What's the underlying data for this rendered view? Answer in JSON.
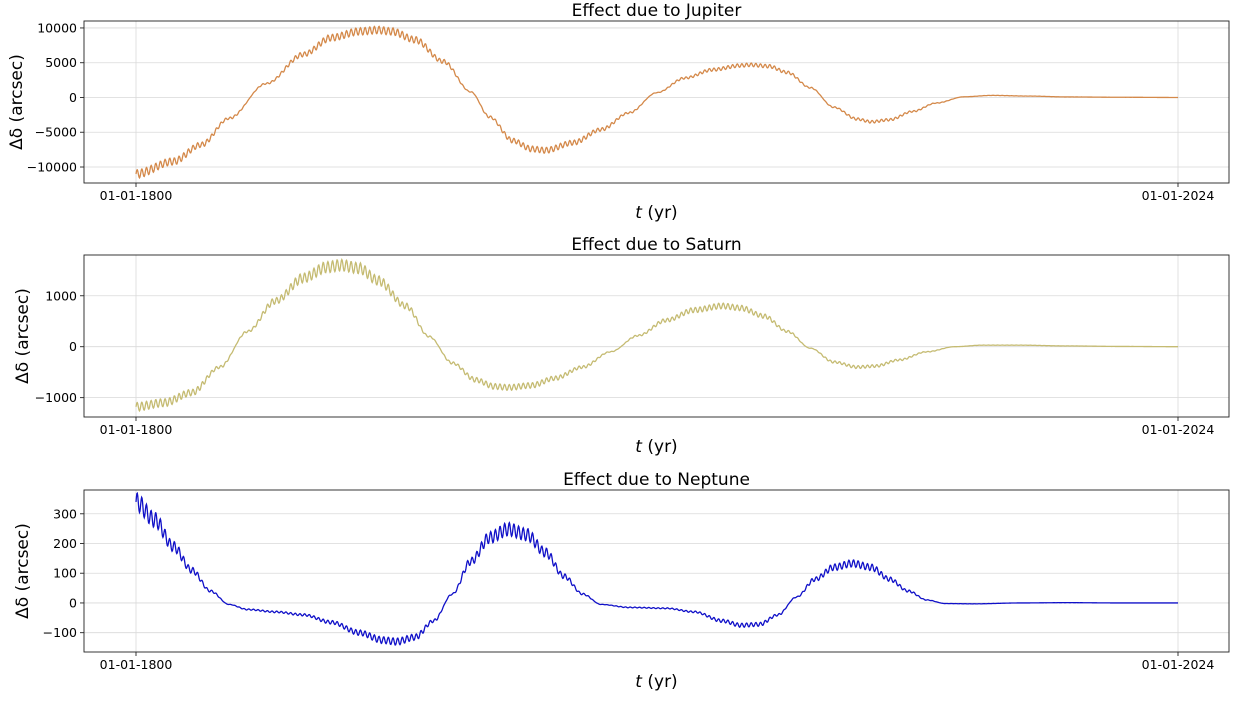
{
  "chart_data": [
    {
      "type": "line",
      "title": "Effect due to Jupiter",
      "xlabel_italic": "t",
      "xlabel_unit": " (yr)",
      "ylabel_symbol": "Δδ",
      "ylabel_unit": " (arcsec)",
      "x_ticklabels": [
        "01-01-1800",
        "01-01-2024"
      ],
      "xlim": [
        1800,
        2024
      ],
      "ylim": [
        -12300,
        11000
      ],
      "yticks": [
        -10000,
        -5000,
        0,
        5000,
        10000
      ],
      "grid": true,
      "series": [
        {
          "color": "#d4894a",
          "oscillation": {
            "period_yr": 1.0,
            "rel_amplitude": 0.055
          },
          "envelope": [
            [
              1800,
              -11000
            ],
            [
              1808,
              -9200
            ],
            [
              1814,
              -6800
            ],
            [
              1820,
              -3000
            ],
            [
              1828,
              2000
            ],
            [
              1836,
              6200
            ],
            [
              1842,
              8600
            ],
            [
              1848,
              9500
            ],
            [
              1852,
              9700
            ],
            [
              1855,
              9500
            ],
            [
              1860,
              8300
            ],
            [
              1866,
              5200
            ],
            [
              1872,
              800
            ],
            [
              1876,
              -2800
            ],
            [
              1881,
              -6200
            ],
            [
              1885,
              -7400
            ],
            [
              1888,
              -7600
            ],
            [
              1894,
              -6500
            ],
            [
              1900,
              -4600
            ],
            [
              1906,
              -2200
            ],
            [
              1912,
              700
            ],
            [
              1918,
              2800
            ],
            [
              1924,
              4000
            ],
            [
              1930,
              4600
            ],
            [
              1932,
              4700
            ],
            [
              1936,
              4500
            ],
            [
              1940,
              3600
            ],
            [
              1945,
              1400
            ],
            [
              1950,
              -1400
            ],
            [
              1955,
              -3100
            ],
            [
              1958,
              -3500
            ],
            [
              1962,
              -3200
            ],
            [
              1967,
              -2000
            ],
            [
              1972,
              -800
            ],
            [
              1978,
              100
            ],
            [
              1984,
              300
            ],
            [
              1992,
              200
            ],
            [
              2000,
              80
            ],
            [
              2012,
              30
            ],
            [
              2024,
              0
            ]
          ]
        }
      ]
    },
    {
      "type": "line",
      "title": "Effect due to Saturn",
      "xlabel_italic": "t",
      "xlabel_unit": " (yr)",
      "ylabel_symbol": "Δδ",
      "ylabel_unit": " (arcsec)",
      "x_ticklabels": [
        "01-01-1800",
        "01-01-2024"
      ],
      "xlim": [
        1800,
        2024
      ],
      "ylim": [
        -1380,
        1800
      ],
      "yticks": [
        -1000,
        0,
        1000
      ],
      "grid": true,
      "series": [
        {
          "color": "#c5bb72",
          "oscillation": {
            "period_yr": 1.0,
            "rel_amplitude": 0.07
          },
          "envelope": [
            [
              1800,
              -1180
            ],
            [
              1806,
              -1100
            ],
            [
              1812,
              -900
            ],
            [
              1818,
              -400
            ],
            [
              1824,
              300
            ],
            [
              1830,
              900
            ],
            [
              1836,
              1350
            ],
            [
              1841,
              1560
            ],
            [
              1844,
              1600
            ],
            [
              1848,
              1540
            ],
            [
              1852,
              1300
            ],
            [
              1858,
              800
            ],
            [
              1863,
              200
            ],
            [
              1868,
              -320
            ],
            [
              1873,
              -650
            ],
            [
              1877,
              -780
            ],
            [
              1880,
              -800
            ],
            [
              1885,
              -760
            ],
            [
              1890,
              -620
            ],
            [
              1896,
              -400
            ],
            [
              1902,
              -100
            ],
            [
              1908,
              220
            ],
            [
              1914,
              520
            ],
            [
              1920,
              720
            ],
            [
              1926,
              800
            ],
            [
              1930,
              760
            ],
            [
              1935,
              600
            ],
            [
              1940,
              300
            ],
            [
              1945,
              -30
            ],
            [
              1950,
              -300
            ],
            [
              1955,
              -400
            ],
            [
              1959,
              -380
            ],
            [
              1964,
              -260
            ],
            [
              1970,
              -100
            ],
            [
              1976,
              0
            ],
            [
              1982,
              30
            ],
            [
              1990,
              30
            ],
            [
              2000,
              15
            ],
            [
              2012,
              5
            ],
            [
              2024,
              0
            ]
          ]
        }
      ]
    },
    {
      "type": "line",
      "title": "Effect due to Neptune",
      "xlabel_italic": "t",
      "xlabel_unit": " (yr)",
      "ylabel_symbol": "Δδ",
      "ylabel_unit": " (arcsec)",
      "x_ticklabels": [
        "01-01-1800",
        "01-01-2024"
      ],
      "xlim": [
        1800,
        2024
      ],
      "ylim": [
        -165,
        380
      ],
      "yticks": [
        -100,
        0,
        100,
        200,
        300
      ],
      "grid": true,
      "series": [
        {
          "color": "#1010c8",
          "oscillation": {
            "period_yr": 1.0,
            "rel_amplitude": 0.09
          },
          "envelope": [
            [
              1800,
              340
            ],
            [
              1804,
              280
            ],
            [
              1808,
              190
            ],
            [
              1812,
              110
            ],
            [
              1816,
              40
            ],
            [
              1820,
              -5
            ],
            [
              1824,
              -22
            ],
            [
              1830,
              -30
            ],
            [
              1836,
              -40
            ],
            [
              1842,
              -65
            ],
            [
              1848,
              -100
            ],
            [
              1853,
              -125
            ],
            [
              1856,
              -130
            ],
            [
              1860,
              -115
            ],
            [
              1864,
              -60
            ],
            [
              1868,
              30
            ],
            [
              1872,
              140
            ],
            [
              1876,
              220
            ],
            [
              1880,
              248
            ],
            [
              1884,
              230
            ],
            [
              1888,
              170
            ],
            [
              1892,
              90
            ],
            [
              1896,
              30
            ],
            [
              1900,
              -5
            ],
            [
              1906,
              -15
            ],
            [
              1914,
              -18
            ],
            [
              1920,
              -30
            ],
            [
              1926,
              -60
            ],
            [
              1930,
              -75
            ],
            [
              1934,
              -72
            ],
            [
              1938,
              -40
            ],
            [
              1942,
              20
            ],
            [
              1946,
              80
            ],
            [
              1950,
              120
            ],
            [
              1954,
              133
            ],
            [
              1958,
              120
            ],
            [
              1962,
              80
            ],
            [
              1966,
              40
            ],
            [
              1970,
              10
            ],
            [
              1974,
              -2
            ],
            [
              1980,
              -3
            ],
            [
              1990,
              0
            ],
            [
              2000,
              1
            ],
            [
              2012,
              0
            ],
            [
              2024,
              0
            ]
          ]
        }
      ]
    }
  ]
}
